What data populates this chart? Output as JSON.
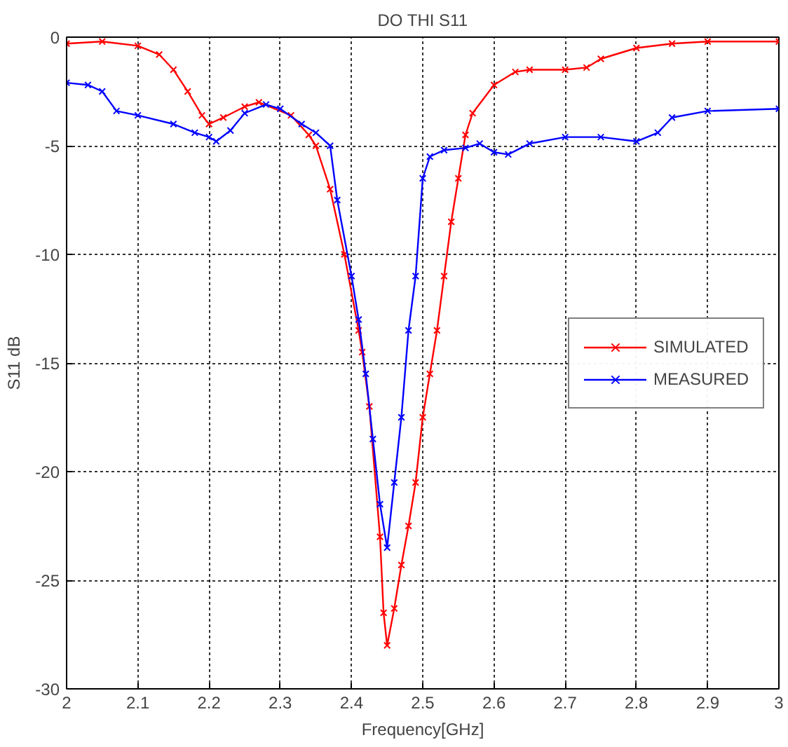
{
  "chart_data": {
    "type": "line",
    "title": "DO THI S11",
    "xlabel": "Frequency[GHz]",
    "ylabel": "S11 dB",
    "xlim": [
      2,
      3
    ],
    "xticks": [
      2,
      2.1,
      2.2,
      2.3,
      2.4,
      2.5,
      2.6,
      2.7,
      2.8,
      2.9,
      3
    ],
    "ylim": [
      -30,
      0
    ],
    "yticks": [
      -30,
      -25,
      -20,
      -15,
      -10,
      -5,
      0
    ],
    "grid": true,
    "legend": "right",
    "marker": "cross",
    "line_style": "solid",
    "series": [
      {
        "name": "SIMULATED",
        "color": "#ff0000",
        "x": [
          2.0,
          2.05,
          2.1,
          2.13,
          2.15,
          2.17,
          2.19,
          2.2,
          2.22,
          2.25,
          2.27,
          2.315,
          2.34,
          2.35,
          2.37,
          2.39,
          2.41,
          2.415,
          2.425,
          2.44,
          2.445,
          2.45,
          2.46,
          2.47,
          2.48,
          2.49,
          2.5,
          2.51,
          2.52,
          2.53,
          2.54,
          2.55,
          2.56,
          2.57,
          2.6,
          2.63,
          2.65,
          2.7,
          2.73,
          2.75,
          2.8,
          2.85,
          2.9,
          3.0
        ],
        "values": [
          -0.3,
          -0.2,
          -0.4,
          -0.8,
          -1.5,
          -2.5,
          -3.6,
          -4.0,
          -3.7,
          -3.2,
          -3.0,
          -3.6,
          -4.5,
          -5.0,
          -7.0,
          -10,
          -13.5,
          -14.5,
          -17,
          -23,
          -26.5,
          -28,
          -26.3,
          -24.3,
          -22.5,
          -20.5,
          -17.5,
          -15.5,
          -13.5,
          -11,
          -8.5,
          -6.5,
          -4.5,
          -3.5,
          -2.2,
          -1.6,
          -1.5,
          -1.5,
          -1.4,
          -1.0,
          -0.5,
          -0.3,
          -0.2,
          -0.2
        ]
      },
      {
        "name": "MEASURED",
        "color": "#0000ff",
        "x": [
          2.0,
          2.03,
          2.05,
          2.07,
          2.1,
          2.15,
          2.18,
          2.2,
          2.21,
          2.23,
          2.25,
          2.28,
          2.3,
          2.33,
          2.35,
          2.37,
          2.38,
          2.4,
          2.41,
          2.42,
          2.43,
          2.44,
          2.45,
          2.46,
          2.47,
          2.48,
          2.49,
          2.5,
          2.51,
          2.53,
          2.56,
          2.58,
          2.6,
          2.62,
          2.65,
          2.7,
          2.75,
          2.8,
          2.83,
          2.85,
          2.9,
          3.0
        ],
        "values": [
          -2.1,
          -2.2,
          -2.5,
          -3.4,
          -3.6,
          -4.0,
          -4.4,
          -4.6,
          -4.8,
          -4.3,
          -3.5,
          -3.1,
          -3.3,
          -4.0,
          -4.4,
          -5.0,
          -7.5,
          -11,
          -13,
          -15.5,
          -18.5,
          -21.5,
          -23.5,
          -20.5,
          -17.5,
          -13.5,
          -11,
          -6.5,
          -5.5,
          -5.2,
          -5.1,
          -4.9,
          -5.3,
          -5.4,
          -4.9,
          -4.6,
          -4.6,
          -4.8,
          -4.4,
          -3.7,
          -3.4,
          -3.3
        ]
      }
    ]
  }
}
